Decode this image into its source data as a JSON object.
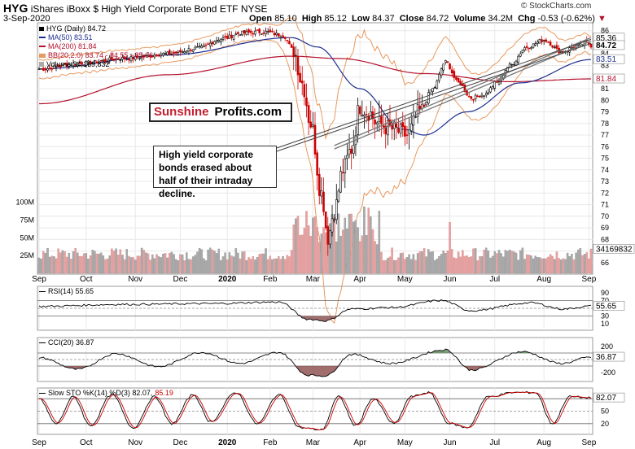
{
  "header": {
    "ticker": "HYG",
    "name": "iShares iBoxx $ High Yield Corporate Bond ETF",
    "exchange": "NYSE",
    "date": "3-Sep-2020",
    "open_label": "Open",
    "open": "85.10",
    "high_label": "High",
    "high": "85.12",
    "low_label": "Low",
    "low": "84.37",
    "close_label": "Close",
    "close": "84.72",
    "volume_label": "Volume",
    "volume": "34.2M",
    "chg_label": "Chg",
    "chg": "-0.53 (-0.62%)",
    "watermark": "© StockCharts.com"
  },
  "legend": {
    "main": "HYG (Daily) 84.72",
    "ma50": "MA(50) 83.51",
    "ma200": "MA(200) 81.84",
    "bb": "BB(20,2.0) 83.74 - 84.55 - 85.36",
    "volume": "Volume 34,169,832",
    "rsi": "RSI(14) 55.65",
    "cci": "CCI(20) 36.87",
    "sto_prefix": "Slow STO %K(14) %D(3) 82.07,",
    "sto_d": "85.19"
  },
  "annotation": {
    "text": "High yield corporate bonds erased about half of their intraday decline.",
    "brand1": "Sunshine",
    "brand2": "Profits.com"
  },
  "colors": {
    "up": "#000000",
    "down": "#cc0000",
    "ma50": "#1f2f8f",
    "ma200": "#b3122d",
    "bb": "#e89a60",
    "vol_up": "#aaaaaa",
    "vol_down": "#e8a0a0",
    "grid": "#e8e8e8",
    "osc_fill_up": "#5a8a5a",
    "osc_fill_down": "#8a4a4a",
    "trend": "#777777"
  },
  "chart_data": {
    "type": "candlestick",
    "x_tick_labels": [
      "Sep",
      "Oct",
      "Nov",
      "Dec",
      "2020",
      "Feb",
      "Mar",
      "Apr",
      "May",
      "Jun",
      "Jul",
      "Aug",
      "Sep"
    ],
    "price_axis": {
      "ticks": [
        66,
        67,
        68,
        69,
        70,
        71,
        72,
        73,
        74,
        75,
        76,
        77,
        78,
        79,
        80,
        81,
        82,
        83,
        84,
        85,
        86
      ],
      "ylim": [
        65.5,
        86.4
      ],
      "labels": [
        "85.36",
        "84.72",
        "83.51",
        "81.84"
      ]
    },
    "volume_axis": {
      "ticks": [
        "100M",
        "75M",
        "50M",
        "25M"
      ],
      "last_label": "34169832",
      "max": 110
    },
    "price_anchors": [
      {
        "i": 0,
        "c": 82.7
      },
      {
        "i": 20,
        "c": 83.2
      },
      {
        "i": 40,
        "c": 83.6
      },
      {
        "i": 60,
        "c": 84.0
      },
      {
        "i": 75,
        "c": 84.5
      },
      {
        "i": 85,
        "c": 85.3
      },
      {
        "i": 95,
        "c": 85.8
      },
      {
        "i": 105,
        "c": 85.9
      },
      {
        "i": 114,
        "c": 85.6
      },
      {
        "i": 119,
        "c": 84.3
      },
      {
        "i": 123,
        "c": 81.5
      },
      {
        "i": 127,
        "c": 78.0
      },
      {
        "i": 132,
        "c": 72.0
      },
      {
        "i": 135,
        "c": 68.2
      },
      {
        "i": 138,
        "c": 70.5
      },
      {
        "i": 142,
        "c": 74.0
      },
      {
        "i": 146,
        "c": 75.8
      },
      {
        "i": 150,
        "c": 79.5
      },
      {
        "i": 154,
        "c": 79.0
      },
      {
        "i": 158,
        "c": 78.0
      },
      {
        "i": 165,
        "c": 77.5
      },
      {
        "i": 172,
        "c": 77.0
      },
      {
        "i": 178,
        "c": 79.0
      },
      {
        "i": 184,
        "c": 81.0
      },
      {
        "i": 190,
        "c": 83.3
      },
      {
        "i": 196,
        "c": 81.5
      },
      {
        "i": 202,
        "c": 80.2
      },
      {
        "i": 208,
        "c": 80.5
      },
      {
        "i": 214,
        "c": 81.5
      },
      {
        "i": 220,
        "c": 83.0
      },
      {
        "i": 228,
        "c": 84.6
      },
      {
        "i": 236,
        "c": 85.2
      },
      {
        "i": 244,
        "c": 84.2
      },
      {
        "i": 252,
        "c": 84.7
      },
      {
        "i": 256,
        "c": 85.0
      },
      {
        "i": 258,
        "c": 84.72
      }
    ],
    "ma50_anchors": [
      {
        "i": 0,
        "v": 82.7
      },
      {
        "i": 60,
        "v": 83.9
      },
      {
        "i": 118,
        "v": 85.4
      },
      {
        "i": 130,
        "v": 84.6
      },
      {
        "i": 150,
        "v": 81.0
      },
      {
        "i": 170,
        "v": 77.5
      },
      {
        "i": 180,
        "v": 77.0
      },
      {
        "i": 200,
        "v": 79.0
      },
      {
        "i": 225,
        "v": 81.5
      },
      {
        "i": 258,
        "v": 83.51
      }
    ],
    "ma200_anchors": [
      {
        "i": 0,
        "v": 79.7
      },
      {
        "i": 60,
        "v": 82.2
      },
      {
        "i": 118,
        "v": 83.8
      },
      {
        "i": 140,
        "v": 83.6
      },
      {
        "i": 180,
        "v": 82.3
      },
      {
        "i": 220,
        "v": 81.6
      },
      {
        "i": 258,
        "v": 81.84
      }
    ],
    "bb_width_anchors": [
      {
        "i": 0,
        "w": 0.8
      },
      {
        "i": 110,
        "w": 0.7
      },
      {
        "i": 125,
        "w": 4.0
      },
      {
        "i": 140,
        "w": 9.0
      },
      {
        "i": 160,
        "w": 6.0
      },
      {
        "i": 180,
        "w": 3.0
      },
      {
        "i": 200,
        "w": 2.0
      },
      {
        "i": 258,
        "w": 0.8
      }
    ],
    "rsi_anchors": [
      {
        "i": 0,
        "v": 55
      },
      {
        "i": 40,
        "v": 60
      },
      {
        "i": 80,
        "v": 62
      },
      {
        "i": 112,
        "v": 66
      },
      {
        "i": 126,
        "v": 22
      },
      {
        "i": 134,
        "v": 18
      },
      {
        "i": 146,
        "v": 48
      },
      {
        "i": 165,
        "v": 52
      },
      {
        "i": 188,
        "v": 70
      },
      {
        "i": 202,
        "v": 44
      },
      {
        "i": 230,
        "v": 64
      },
      {
        "i": 245,
        "v": 48
      },
      {
        "i": 258,
        "v": 55.65
      }
    ],
    "cci_anchors": [
      {
        "i": 0,
        "v": 30
      },
      {
        "i": 18,
        "v": -150
      },
      {
        "i": 36,
        "v": 90
      },
      {
        "i": 56,
        "v": -110
      },
      {
        "i": 76,
        "v": 110
      },
      {
        "i": 94,
        "v": -60
      },
      {
        "i": 112,
        "v": 110
      },
      {
        "i": 126,
        "v": -240
      },
      {
        "i": 134,
        "v": -250
      },
      {
        "i": 146,
        "v": 80
      },
      {
        "i": 164,
        "v": -60
      },
      {
        "i": 190,
        "v": 150
      },
      {
        "i": 202,
        "v": -160
      },
      {
        "i": 226,
        "v": 120
      },
      {
        "i": 244,
        "v": -60
      },
      {
        "i": 258,
        "v": 36.87
      }
    ],
    "rsi_axis": {
      "ticks": [
        "90",
        "70",
        "50",
        "30",
        "10"
      ],
      "ylim": [
        0,
        100
      ],
      "current": "55.65"
    },
    "cci_axis": {
      "ticks": [
        "200",
        "-200"
      ],
      "ylim": [
        -300,
        300
      ],
      "current": "36.87"
    },
    "sto_axis": {
      "ticks": [
        "80",
        "50",
        "20"
      ],
      "ylim": [
        0,
        100
      ],
      "current": "82.07"
    },
    "sto_anchors": [
      {
        "i": 0,
        "v": 80
      },
      {
        "i": 8,
        "v": 20
      },
      {
        "i": 16,
        "v": 85
      },
      {
        "i": 24,
        "v": 15
      },
      {
        "i": 34,
        "v": 90
      },
      {
        "i": 44,
        "v": 10
      },
      {
        "i": 54,
        "v": 85
      },
      {
        "i": 62,
        "v": 20
      },
      {
        "i": 72,
        "v": 90
      },
      {
        "i": 80,
        "v": 25
      },
      {
        "i": 92,
        "v": 95
      },
      {
        "i": 102,
        "v": 20
      },
      {
        "i": 112,
        "v": 90
      },
      {
        "i": 122,
        "v": 10
      },
      {
        "i": 132,
        "v": 5
      },
      {
        "i": 140,
        "v": 85
      },
      {
        "i": 148,
        "v": 15
      },
      {
        "i": 156,
        "v": 80
      },
      {
        "i": 166,
        "v": 20
      },
      {
        "i": 174,
        "v": 85
      },
      {
        "i": 182,
        "v": 95
      },
      {
        "i": 192,
        "v": 20
      },
      {
        "i": 200,
        "v": 10
      },
      {
        "i": 210,
        "v": 85
      },
      {
        "i": 222,
        "v": 95
      },
      {
        "i": 232,
        "v": 95
      },
      {
        "i": 240,
        "v": 20
      },
      {
        "i": 248,
        "v": 85
      },
      {
        "i": 258,
        "v": 82.07
      }
    ]
  }
}
